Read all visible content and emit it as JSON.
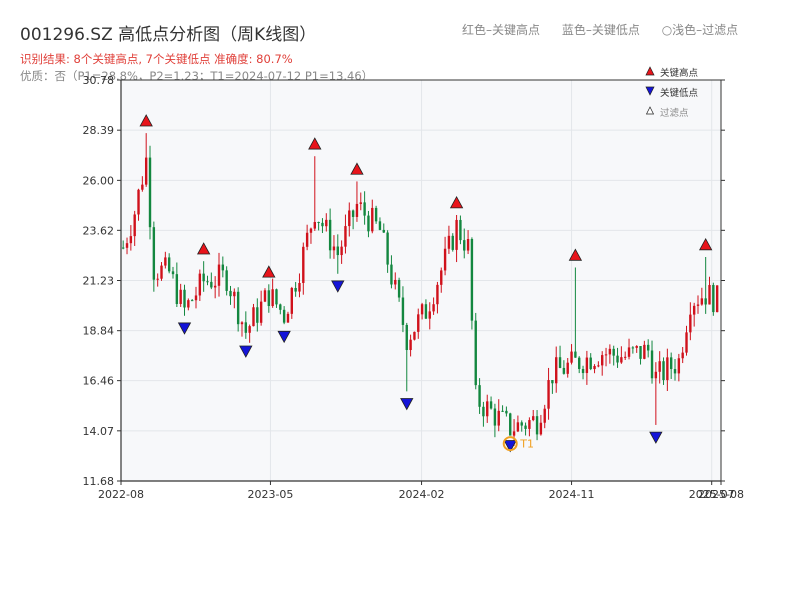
{
  "header": {
    "title": "001296.SZ 高低点分析图（周K线图）",
    "result": "识别结果: 8个关键高点, 7个关键低点   准确度: 80.7%",
    "quality": "优质：否（P1=28.8%，P2=1.23；T1=2024-07-12 P1=13.46）"
  },
  "top_legend": {
    "red": "红色–关键高点",
    "blue": "蓝色–关键低点",
    "light": "○浅色–过滤点"
  },
  "colors": {
    "up": "#d0111b",
    "down": "#13873f",
    "high_marker": "#e8141b",
    "low_marker": "#1414d8",
    "t1": "#f0a020",
    "grid": "#e3e6ea",
    "plot_bg": "#f7f8fa"
  },
  "chart_data": {
    "type": "candlestick",
    "y_ticks": [
      "11.68",
      "14.07",
      "16.46",
      "18.84",
      "21.23",
      "23.62",
      "26.00",
      "28.39",
      "30.78"
    ],
    "ylim": [
      11.68,
      30.78
    ],
    "x_ticks": [
      "2022-08",
      "2023-05",
      "2024-02",
      "2024-11",
      "2025-08",
      "2025-07"
    ],
    "x_range": [
      "2022-08-01",
      "2025-08-01"
    ],
    "grid": true,
    "legend": {
      "position": "top-right",
      "entries": [
        "关键高点",
        "关键低点",
        "过滤点"
      ]
    },
    "key_highs": [
      {
        "date": "2022-09-16",
        "price": 28.4
      },
      {
        "date": "2022-12-30",
        "price": 22.3
      },
      {
        "date": "2023-04-28",
        "price": 21.2
      },
      {
        "date": "2023-07-21",
        "price": 27.3
      },
      {
        "date": "2023-10-06",
        "price": 26.1
      },
      {
        "date": "2024-04-05",
        "price": 24.5
      },
      {
        "date": "2024-11-08",
        "price": 22.0
      },
      {
        "date": "2025-07-04",
        "price": 22.5
      }
    ],
    "key_lows": [
      {
        "date": "2022-11-25",
        "price": 19.4
      },
      {
        "date": "2023-03-17",
        "price": 18.3
      },
      {
        "date": "2023-05-26",
        "price": 19.0
      },
      {
        "date": "2023-09-01",
        "price": 21.4
      },
      {
        "date": "2024-01-05",
        "price": 15.8
      },
      {
        "date": "2024-07-12",
        "price": 13.8
      },
      {
        "date": "2025-04-04",
        "price": 14.2
      }
    ],
    "t1": {
      "label": "T1",
      "date": "2024-07-12",
      "price": 13.46
    },
    "waypoints": [
      [
        "2022-08-05",
        22.8
      ],
      [
        "2022-08-26",
        24.5
      ],
      [
        "2022-09-16",
        27.0
      ],
      [
        "2022-09-30",
        21.8
      ],
      [
        "2022-10-28",
        21.6
      ],
      [
        "2022-11-25",
        19.8
      ],
      [
        "2022-12-30",
        21.2
      ],
      [
        "2023-02-10",
        21.4
      ],
      [
        "2023-03-17",
        18.8
      ],
      [
        "2023-04-28",
        20.6
      ],
      [
        "2023-05-26",
        19.6
      ],
      [
        "2023-06-23",
        21.8
      ],
      [
        "2023-07-21",
        24.6
      ],
      [
        "2023-09-01",
        22.5
      ],
      [
        "2023-10-06",
        24.8
      ],
      [
        "2023-11-17",
        23.6
      ],
      [
        "2024-01-05",
        18.5
      ],
      [
        "2024-02-09",
        19.8
      ],
      [
        "2024-03-15",
        22.2
      ],
      [
        "2024-04-05",
        23.8
      ],
      [
        "2024-04-26",
        22.8
      ],
      [
        "2024-05-10",
        15.6
      ],
      [
        "2024-07-12",
        14.2
      ],
      [
        "2024-08-30",
        14.6
      ],
      [
        "2024-09-27",
        16.8
      ],
      [
        "2024-11-08",
        17.3
      ],
      [
        "2024-12-27",
        17.8
      ],
      [
        "2025-02-07",
        17.6
      ],
      [
        "2025-03-21",
        17.9
      ],
      [
        "2025-04-04",
        16.6
      ],
      [
        "2025-05-16",
        17.4
      ],
      [
        "2025-06-06",
        20.3
      ],
      [
        "2025-07-04",
        20.6
      ],
      [
        "2025-07-25",
        20.3
      ]
    ]
  }
}
